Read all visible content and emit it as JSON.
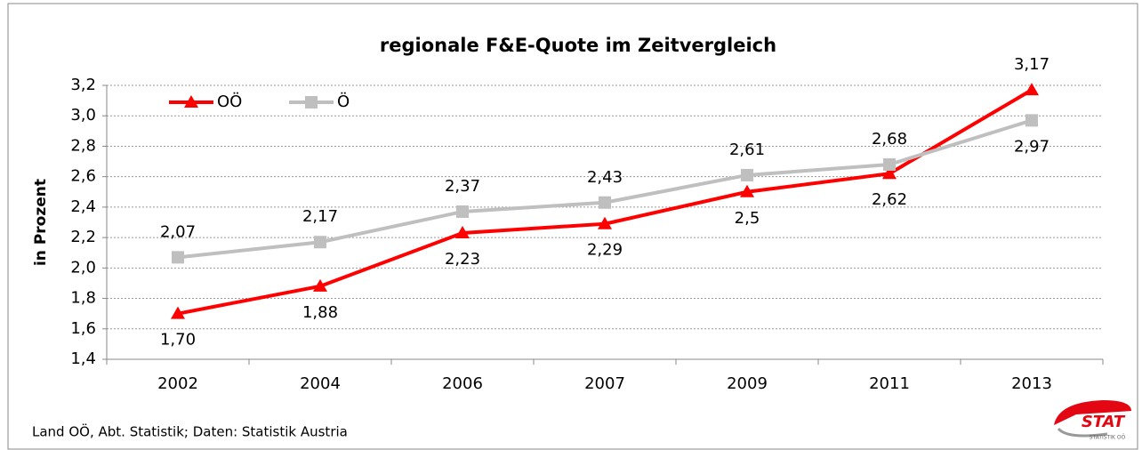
{
  "chart_data": {
    "type": "line",
    "title": "regionale F&E-Quote im Zeitvergleich",
    "y_label": "in Prozent",
    "source": "Land OÖ, Abt. Statistik; Daten: Statistik Austria",
    "logo": {
      "text": "STAT",
      "subtext": "STATISTIK OÖ"
    },
    "categories": [
      "2002",
      "2004",
      "2006",
      "2007",
      "2009",
      "2011",
      "2013"
    ],
    "series": [
      {
        "name": "OÖ",
        "color": "#ff0000",
        "marker": "triangle",
        "values": [
          1.7,
          1.88,
          2.23,
          2.29,
          2.5,
          2.62,
          3.17
        ],
        "value_labels": [
          "1,70",
          "1,88",
          "2,23",
          "2,29",
          "2,5",
          "2,62",
          "3,17"
        ]
      },
      {
        "name": "Ö",
        "color": "#bfbfbf",
        "marker": "square",
        "values": [
          2.07,
          2.17,
          2.37,
          2.43,
          2.61,
          2.68,
          2.97
        ],
        "value_labels": [
          "2,07",
          "2,17",
          "2,37",
          "2,43",
          "2,61",
          "2,68",
          "2,97"
        ]
      }
    ],
    "ylim": [
      1.4,
      3.2
    ],
    "yticks": [
      {
        "value": 1.4,
        "label": "1,4"
      },
      {
        "value": 1.6,
        "label": "1,6"
      },
      {
        "value": 1.8,
        "label": "1,8"
      },
      {
        "value": 2.0,
        "label": "2,0"
      },
      {
        "value": 2.2,
        "label": "2,2"
      },
      {
        "value": 2.4,
        "label": "2,4"
      },
      {
        "value": 2.6,
        "label": "2,6"
      },
      {
        "value": 2.8,
        "label": "2,8"
      },
      {
        "value": 3.0,
        "label": "3,0"
      },
      {
        "value": 3.2,
        "label": "3,2"
      }
    ],
    "grid": true,
    "legend": "top-left"
  }
}
